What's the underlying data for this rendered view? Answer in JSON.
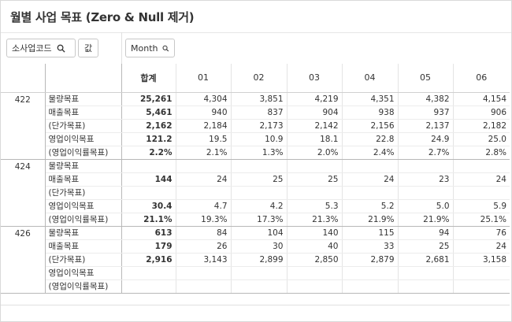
{
  "title": "월별 사업 목표 (Zero & Null 제거)",
  "filters": {
    "dim_label": "소사업코드",
    "value_label": "값",
    "month_label": "Month"
  },
  "table": {
    "headers": {
      "total": "합계",
      "months": [
        "01",
        "02",
        "03",
        "04",
        "05",
        "06"
      ]
    },
    "groups": [
      {
        "code": "422",
        "rows": [
          {
            "label": "물량목표",
            "total": "25,261",
            "values": [
              "4,304",
              "3,851",
              "4,219",
              "4,351",
              "4,382",
              "4,154"
            ]
          },
          {
            "label": "매출목표",
            "total": "5,461",
            "values": [
              "940",
              "837",
              "904",
              "938",
              "937",
              "906"
            ]
          },
          {
            "label": "(단가목표)",
            "total": "2,162",
            "values": [
              "2,184",
              "2,173",
              "2,142",
              "2,156",
              "2,137",
              "2,182"
            ]
          },
          {
            "label": "영업이익목표",
            "total": "121.2",
            "values": [
              "19.5",
              "10.9",
              "18.1",
              "22.8",
              "24.9",
              "25.0"
            ]
          },
          {
            "label": "(영업이익률목표)",
            "total": "2.2%",
            "values": [
              "2.1%",
              "1.3%",
              "2.0%",
              "2.4%",
              "2.7%",
              "2.8%"
            ]
          }
        ]
      },
      {
        "code": "424",
        "rows": [
          {
            "label": "물량목표",
            "total": "",
            "values": [
              "",
              "",
              "",
              "",
              "",
              ""
            ]
          },
          {
            "label": "매출목표",
            "total": "144",
            "values": [
              "24",
              "25",
              "25",
              "24",
              "23",
              "24"
            ]
          },
          {
            "label": "(단가목표)",
            "total": "",
            "values": [
              "",
              "",
              "",
              "",
              "",
              ""
            ]
          },
          {
            "label": "영업이익목표",
            "total": "30.4",
            "values": [
              "4.7",
              "4.2",
              "5.3",
              "5.2",
              "5.0",
              "5.9"
            ]
          },
          {
            "label": "(영업이익률목표)",
            "total": "21.1%",
            "values": [
              "19.3%",
              "17.3%",
              "21.3%",
              "21.9%",
              "21.9%",
              "25.1%"
            ]
          }
        ]
      },
      {
        "code": "426",
        "rows": [
          {
            "label": "물량목표",
            "total": "613",
            "values": [
              "84",
              "104",
              "140",
              "115",
              "94",
              "76"
            ]
          },
          {
            "label": "매출목표",
            "total": "179",
            "values": [
              "26",
              "30",
              "40",
              "33",
              "25",
              "24"
            ]
          },
          {
            "label": "(단가목표)",
            "total": "2,916",
            "values": [
              "3,143",
              "2,899",
              "2,850",
              "2,879",
              "2,681",
              "3,158"
            ]
          },
          {
            "label": "영업이익목표",
            "total": "",
            "values": [
              "",
              "",
              "",
              "",
              "",
              ""
            ]
          },
          {
            "label": "(영업이익률목표)",
            "total": "",
            "values": [
              "",
              "",
              "",
              "",
              "",
              ""
            ]
          }
        ]
      }
    ]
  }
}
